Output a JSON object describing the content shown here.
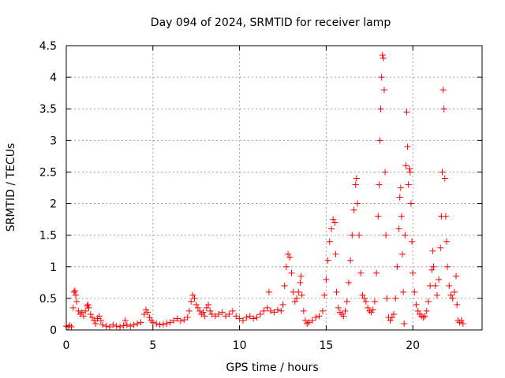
{
  "chart_data": {
    "type": "scatter",
    "title": "Day 094 of 2024, SRMTID for receiver lamp",
    "xlabel": "GPS time / hours",
    "ylabel": "SRMTID / TECUs",
    "xlim": [
      0,
      24
    ],
    "ylim": [
      0,
      4.5
    ],
    "x_ticks": [
      0,
      5,
      10,
      15,
      20
    ],
    "x_tick_labels": [
      "0",
      "5",
      "10",
      "15",
      "20"
    ],
    "y_ticks": [
      0,
      0.5,
      1,
      1.5,
      2,
      2.5,
      3,
      3.5,
      4,
      4.5
    ],
    "y_tick_labels": [
      "0",
      "0.5",
      "1",
      "1.5",
      "2",
      "2.5",
      "3",
      "3.5",
      "4",
      "4.5"
    ],
    "grid": true,
    "marker": "+",
    "series": [
      {
        "name": "SRMTID",
        "color": "#ff0000",
        "points": [
          [
            0.0,
            0.06
          ],
          [
            0.1,
            0.05
          ],
          [
            0.2,
            0.07
          ],
          [
            0.3,
            0.05
          ],
          [
            0.4,
            0.35
          ],
          [
            0.45,
            0.6
          ],
          [
            0.5,
            0.62
          ],
          [
            0.55,
            0.55
          ],
          [
            0.6,
            0.45
          ],
          [
            0.7,
            0.3
          ],
          [
            0.8,
            0.25
          ],
          [
            0.9,
            0.28
          ],
          [
            1.0,
            0.22
          ],
          [
            1.1,
            0.3
          ],
          [
            1.2,
            0.38
          ],
          [
            1.25,
            0.4
          ],
          [
            1.3,
            0.35
          ],
          [
            1.4,
            0.25
          ],
          [
            1.5,
            0.2
          ],
          [
            1.6,
            0.15
          ],
          [
            1.7,
            0.1
          ],
          [
            1.8,
            0.18
          ],
          [
            1.9,
            0.22
          ],
          [
            2.0,
            0.15
          ],
          [
            2.1,
            0.08
          ],
          [
            2.3,
            0.06
          ],
          [
            2.5,
            0.05
          ],
          [
            2.7,
            0.08
          ],
          [
            2.9,
            0.06
          ],
          [
            3.1,
            0.05
          ],
          [
            3.3,
            0.07
          ],
          [
            3.4,
            0.15
          ],
          [
            3.5,
            0.08
          ],
          [
            3.7,
            0.06
          ],
          [
            3.9,
            0.08
          ],
          [
            4.1,
            0.1
          ],
          [
            4.3,
            0.12
          ],
          [
            4.5,
            0.25
          ],
          [
            4.6,
            0.32
          ],
          [
            4.7,
            0.28
          ],
          [
            4.8,
            0.2
          ],
          [
            4.9,
            0.15
          ],
          [
            5.0,
            0.12
          ],
          [
            5.2,
            0.1
          ],
          [
            5.4,
            0.08
          ],
          [
            5.6,
            0.09
          ],
          [
            5.8,
            0.1
          ],
          [
            6.0,
            0.12
          ],
          [
            6.2,
            0.15
          ],
          [
            6.4,
            0.18
          ],
          [
            6.6,
            0.14
          ],
          [
            6.8,
            0.16
          ],
          [
            7.0,
            0.2
          ],
          [
            7.1,
            0.3
          ],
          [
            7.2,
            0.45
          ],
          [
            7.3,
            0.55
          ],
          [
            7.4,
            0.5
          ],
          [
            7.5,
            0.4
          ],
          [
            7.6,
            0.35
          ],
          [
            7.7,
            0.3
          ],
          [
            7.8,
            0.25
          ],
          [
            7.9,
            0.28
          ],
          [
            8.0,
            0.22
          ],
          [
            8.1,
            0.35
          ],
          [
            8.2,
            0.4
          ],
          [
            8.3,
            0.3
          ],
          [
            8.4,
            0.25
          ],
          [
            8.6,
            0.22
          ],
          [
            8.8,
            0.25
          ],
          [
            9.0,
            0.28
          ],
          [
            9.2,
            0.22
          ],
          [
            9.4,
            0.25
          ],
          [
            9.6,
            0.3
          ],
          [
            9.8,
            0.22
          ],
          [
            10.0,
            0.18
          ],
          [
            10.2,
            0.15
          ],
          [
            10.4,
            0.2
          ],
          [
            10.6,
            0.22
          ],
          [
            10.8,
            0.18
          ],
          [
            11.0,
            0.2
          ],
          [
            11.2,
            0.25
          ],
          [
            11.4,
            0.3
          ],
          [
            11.6,
            0.35
          ],
          [
            11.7,
            0.6
          ],
          [
            11.8,
            0.3
          ],
          [
            12.0,
            0.28
          ],
          [
            12.2,
            0.32
          ],
          [
            12.4,
            0.3
          ],
          [
            12.5,
            0.4
          ],
          [
            12.6,
            0.7
          ],
          [
            12.7,
            1.0
          ],
          [
            12.8,
            1.2
          ],
          [
            12.9,
            1.15
          ],
          [
            13.0,
            0.9
          ],
          [
            13.1,
            0.6
          ],
          [
            13.2,
            0.45
          ],
          [
            13.3,
            0.5
          ],
          [
            13.4,
            0.6
          ],
          [
            13.5,
            0.75
          ],
          [
            13.55,
            0.85
          ],
          [
            13.6,
            0.55
          ],
          [
            13.7,
            0.3
          ],
          [
            13.8,
            0.15
          ],
          [
            13.9,
            0.1
          ],
          [
            14.0,
            0.12
          ],
          [
            14.2,
            0.15
          ],
          [
            14.4,
            0.2
          ],
          [
            14.6,
            0.22
          ],
          [
            14.8,
            0.3
          ],
          [
            14.9,
            0.55
          ],
          [
            15.0,
            0.8
          ],
          [
            15.1,
            1.1
          ],
          [
            15.2,
            1.4
          ],
          [
            15.3,
            1.6
          ],
          [
            15.4,
            1.75
          ],
          [
            15.5,
            1.7
          ],
          [
            15.55,
            1.2
          ],
          [
            15.6,
            0.6
          ],
          [
            15.7,
            0.35
          ],
          [
            15.8,
            0.28
          ],
          [
            15.9,
            0.25
          ],
          [
            16.0,
            0.22
          ],
          [
            16.1,
            0.3
          ],
          [
            16.2,
            0.45
          ],
          [
            16.3,
            0.75
          ],
          [
            16.4,
            1.1
          ],
          [
            16.5,
            1.5
          ],
          [
            16.6,
            1.9
          ],
          [
            16.7,
            2.3
          ],
          [
            16.75,
            2.4
          ],
          [
            16.8,
            2.0
          ],
          [
            16.9,
            1.5
          ],
          [
            17.0,
            0.9
          ],
          [
            17.1,
            0.55
          ],
          [
            17.2,
            0.5
          ],
          [
            17.3,
            0.45
          ],
          [
            17.4,
            0.35
          ],
          [
            17.5,
            0.3
          ],
          [
            17.6,
            0.28
          ],
          [
            17.7,
            0.32
          ],
          [
            17.8,
            0.45
          ],
          [
            17.9,
            0.9
          ],
          [
            18.0,
            1.8
          ],
          [
            18.05,
            2.3
          ],
          [
            18.1,
            3.0
          ],
          [
            18.15,
            3.5
          ],
          [
            18.2,
            4.0
          ],
          [
            18.25,
            4.35
          ],
          [
            18.3,
            4.3
          ],
          [
            18.35,
            3.8
          ],
          [
            18.4,
            2.5
          ],
          [
            18.45,
            1.5
          ],
          [
            18.5,
            0.5
          ],
          [
            18.6,
            0.2
          ],
          [
            18.7,
            0.15
          ],
          [
            18.8,
            0.2
          ],
          [
            18.9,
            0.25
          ],
          [
            19.0,
            0.5
          ],
          [
            19.1,
            1.0
          ],
          [
            19.2,
            1.6
          ],
          [
            19.25,
            2.1
          ],
          [
            19.3,
            2.25
          ],
          [
            19.35,
            1.8
          ],
          [
            19.4,
            1.2
          ],
          [
            19.45,
            0.6
          ],
          [
            19.5,
            0.1
          ],
          [
            19.55,
            1.5
          ],
          [
            19.6,
            2.6
          ],
          [
            19.65,
            3.45
          ],
          [
            19.7,
            2.9
          ],
          [
            19.75,
            2.3
          ],
          [
            19.8,
            2.55
          ],
          [
            19.85,
            2.5
          ],
          [
            19.9,
            2.0
          ],
          [
            19.95,
            1.4
          ],
          [
            20.0,
            0.9
          ],
          [
            20.1,
            0.6
          ],
          [
            20.2,
            0.4
          ],
          [
            20.3,
            0.3
          ],
          [
            20.4,
            0.25
          ],
          [
            20.5,
            0.22
          ],
          [
            20.6,
            0.2
          ],
          [
            20.7,
            0.22
          ],
          [
            20.8,
            0.3
          ],
          [
            20.9,
            0.45
          ],
          [
            21.0,
            0.7
          ],
          [
            21.1,
            0.95
          ],
          [
            21.15,
            1.25
          ],
          [
            21.2,
            1.0
          ],
          [
            21.3,
            0.7
          ],
          [
            21.4,
            0.55
          ],
          [
            21.5,
            0.8
          ],
          [
            21.6,
            1.3
          ],
          [
            21.65,
            1.8
          ],
          [
            21.7,
            2.5
          ],
          [
            21.75,
            3.8
          ],
          [
            21.8,
            3.5
          ],
          [
            21.85,
            2.4
          ],
          [
            21.9,
            1.8
          ],
          [
            21.95,
            1.4
          ],
          [
            22.0,
            1.0
          ],
          [
            22.1,
            0.7
          ],
          [
            22.2,
            0.55
          ],
          [
            22.3,
            0.5
          ],
          [
            22.4,
            0.6
          ],
          [
            22.5,
            0.85
          ],
          [
            22.55,
            0.4
          ],
          [
            22.6,
            0.15
          ],
          [
            22.7,
            0.12
          ],
          [
            22.8,
            0.15
          ],
          [
            22.9,
            0.1
          ]
        ]
      }
    ]
  }
}
